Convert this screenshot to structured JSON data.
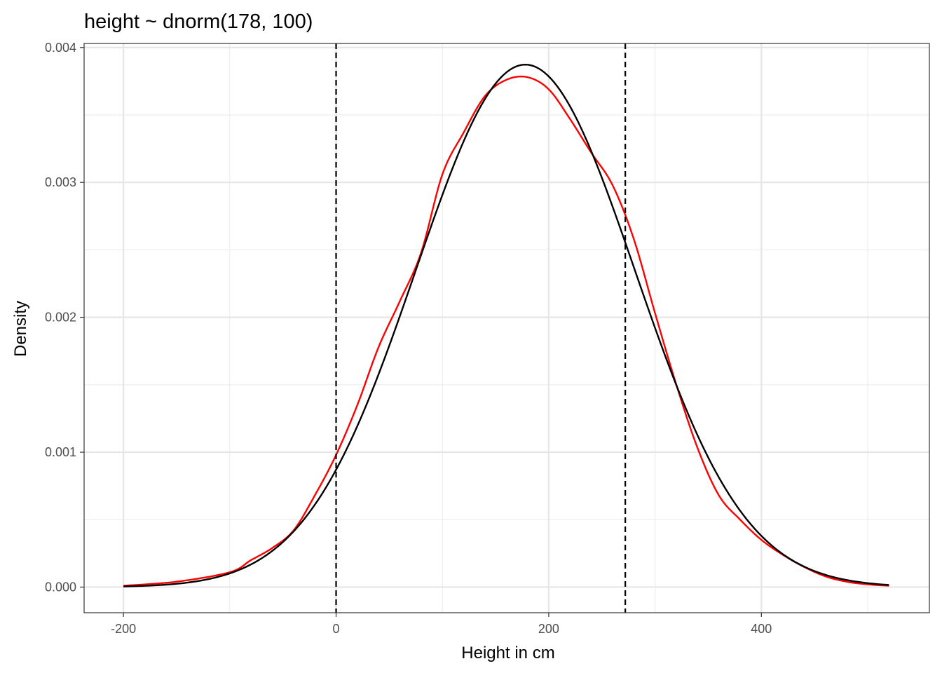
{
  "chart_data": {
    "type": "line",
    "title": "height ~ dnorm(178, 100)",
    "xlabel": "Height in cm",
    "ylabel": "Density",
    "xlim": [
      -237,
      558
    ],
    "ylim": [
      -0.00019,
      0.00403
    ],
    "x_major_ticks": [
      -200,
      0,
      200,
      400
    ],
    "x_tick_labels": [
      "-200",
      "0",
      "200",
      "400"
    ],
    "x_minor_ticks": [
      -100,
      100,
      300,
      500
    ],
    "y_major_ticks": [
      0,
      0.001,
      0.002,
      0.003,
      0.004
    ],
    "y_tick_labels": [
      "0.000",
      "0.001",
      "0.002",
      "0.003",
      "0.004"
    ],
    "y_minor_ticks": [
      0.0005,
      0.0015,
      0.0025,
      0.0035
    ],
    "grid": true,
    "legend": "none",
    "series": [
      {
        "kind": "density",
        "color": "#ff0000",
        "x": [
          -200,
          -150,
          -100,
          -80,
          -60,
          -40,
          -20,
          0,
          20,
          40,
          60,
          80,
          100,
          120,
          140,
          160,
          180,
          200,
          220,
          240,
          260,
          280,
          300,
          320,
          340,
          360,
          380,
          400,
          420,
          440,
          460,
          480,
          500,
          520
        ],
        "y": [
          1e-05,
          4e-05,
          0.00011,
          0.0002,
          0.00029,
          0.00042,
          0.00068,
          0.00098,
          0.00135,
          0.00178,
          0.00212,
          0.00248,
          0.00306,
          0.00337,
          0.00364,
          0.00376,
          0.00378,
          0.00369,
          0.00347,
          0.00322,
          0.00298,
          0.00258,
          0.00203,
          0.0015,
          0.00103,
          0.00068,
          0.0005,
          0.00035,
          0.00024,
          0.00015,
          8e-05,
          4e-05,
          2e-05,
          1e-05
        ]
      },
      {
        "kind": "normal",
        "color": "#000000",
        "mean": 178,
        "sd": 103,
        "x_range": [
          -200,
          520
        ]
      }
    ],
    "vlines": [
      {
        "x": 0,
        "style": "dashed",
        "color": "#000000"
      },
      {
        "x": 272,
        "style": "dashed",
        "color": "#000000"
      }
    ]
  }
}
